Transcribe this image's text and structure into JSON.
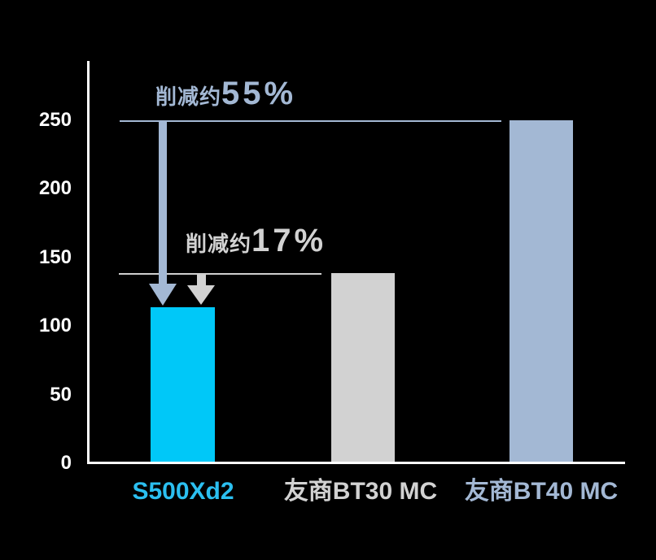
{
  "chart_data": {
    "type": "bar",
    "title": "",
    "xlabel": "",
    "ylabel": "",
    "categories": [
      "S500Xd2",
      "友商BT30 MC",
      "友商BT40 MC"
    ],
    "values": [
      113,
      138,
      250
    ],
    "bar_colors": [
      "#00c8f8",
      "#d2d2d2",
      "#a3b8d4"
    ],
    "category_label_colors": [
      "#2bbff0",
      "#d2d2d2",
      "#a3b8d4"
    ],
    "ylim": [
      0,
      290
    ],
    "ytick_labels": [
      "250",
      "200",
      "150",
      "100",
      "50",
      "0"
    ],
    "grid": false,
    "legend": "none",
    "background": "#000000",
    "axis_color": "#ffffff",
    "reference_lines": [
      {
        "level": 250,
        "color": "#a3b8d4"
      },
      {
        "level": 138,
        "color": "#cfcfcf"
      }
    ],
    "annotations": [
      {
        "prefix": "削减约",
        "value_text": "55%",
        "from_level": 250,
        "to_level": 113,
        "color": "#a3b8d4"
      },
      {
        "prefix": "削减约",
        "value_text": "17%",
        "from_level": 138,
        "to_level": 113,
        "color": "#d2d2d2"
      }
    ]
  }
}
